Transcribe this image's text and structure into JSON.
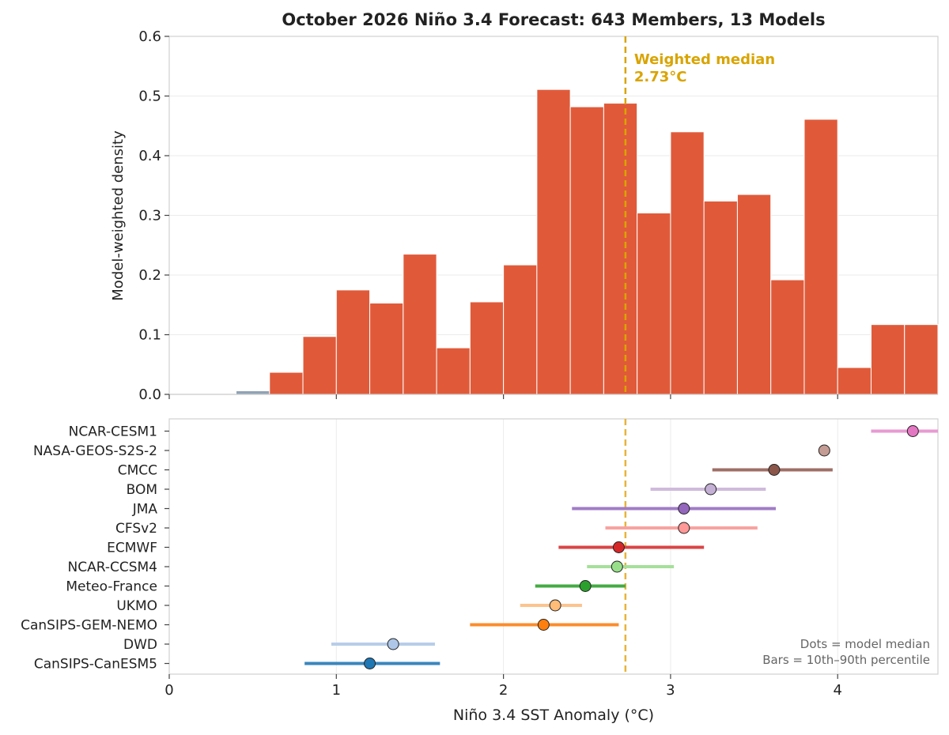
{
  "title": "October 2026 Niño 3.4 Forecast: 643 Members, 13 Models",
  "colors": {
    "bar_main": "#e05a3a",
    "bar_low": "#8fa3b5",
    "median_line": "#d9a400",
    "median_line_lower": "#e8b43a",
    "grid": "#ebebeb",
    "axes_frame": "#d0d0d0",
    "text": "#222222",
    "note": "#666666"
  },
  "median": {
    "value": 2.73,
    "label_line1": "Weighted median",
    "label_line2": "2.73°C"
  },
  "chart_data": [
    {
      "type": "bar",
      "title": "October 2026 Niño 3.4 Forecast: 643 Members, 13 Models",
      "xlabel": "",
      "ylabel": "Model-weighted density",
      "xlim": [
        0,
        4.6
      ],
      "ylim": [
        0,
        0.6
      ],
      "yticks": [
        0.0,
        0.1,
        0.2,
        0.3,
        0.4,
        0.5,
        0.6
      ],
      "ytick_labels": [
        "0.0",
        "0.1",
        "0.2",
        "0.3",
        "0.4",
        "0.5",
        "0.6"
      ],
      "grid": true,
      "bin_width": 0.2,
      "bins": [
        {
          "start": 0.4,
          "value": 0.006,
          "color_key": "bar_low"
        },
        {
          "start": 0.6,
          "value": 0.037
        },
        {
          "start": 0.8,
          "value": 0.097
        },
        {
          "start": 1.0,
          "value": 0.175
        },
        {
          "start": 1.2,
          "value": 0.153
        },
        {
          "start": 1.4,
          "value": 0.235
        },
        {
          "start": 1.6,
          "value": 0.078
        },
        {
          "start": 1.8,
          "value": 0.155
        },
        {
          "start": 2.0,
          "value": 0.217
        },
        {
          "start": 2.2,
          "value": 0.511
        },
        {
          "start": 2.4,
          "value": 0.482
        },
        {
          "start": 2.6,
          "value": 0.488
        },
        {
          "start": 2.8,
          "value": 0.304
        },
        {
          "start": 3.0,
          "value": 0.44
        },
        {
          "start": 3.2,
          "value": 0.324
        },
        {
          "start": 3.4,
          "value": 0.335
        },
        {
          "start": 3.6,
          "value": 0.192
        },
        {
          "start": 3.8,
          "value": 0.461
        },
        {
          "start": 4.0,
          "value": 0.045
        },
        {
          "start": 4.2,
          "value": 0.117
        },
        {
          "start": 4.4,
          "value": 0.117
        }
      ]
    },
    {
      "type": "scatter",
      "title": "",
      "xlabel": "Niño 3.4 SST Anomaly (°C)",
      "ylabel": "",
      "xlim": [
        0,
        4.6
      ],
      "xticks": [
        0,
        1,
        2,
        3,
        4
      ],
      "xtick_labels": [
        "0",
        "1",
        "2",
        "3",
        "4"
      ],
      "grid": true,
      "note_line1": "Dots = model median",
      "note_line2": "Bars = 10th–90th percentile",
      "models": [
        {
          "name": "NCAR-CESM1",
          "median": 4.45,
          "p10": 4.2,
          "p90": 4.6,
          "color": "#e377c2",
          "bar_color": "#e89ad2"
        },
        {
          "name": "NASA-GEOS-S2S-2",
          "median": 3.92,
          "p10": null,
          "p90": null,
          "color": "#c49c94",
          "bar_color": "#c49c94"
        },
        {
          "name": "CMCC",
          "median": 3.62,
          "p10": 3.25,
          "p90": 3.97,
          "color": "#8c564b",
          "bar_color": "#9e6e64"
        },
        {
          "name": "BOM",
          "median": 3.24,
          "p10": 2.88,
          "p90": 3.57,
          "color": "#c5b0d5",
          "bar_color": "#cfbadc"
        },
        {
          "name": "JMA",
          "median": 3.08,
          "p10": 2.41,
          "p90": 3.63,
          "color": "#9467bd",
          "bar_color": "#a07cc6"
        },
        {
          "name": "CFSv2",
          "median": 3.08,
          "p10": 2.61,
          "p90": 3.52,
          "color": "#ff9896",
          "bar_color": "#f7a3a0"
        },
        {
          "name": "ECMWF",
          "median": 2.69,
          "p10": 2.33,
          "p90": 3.2,
          "color": "#d62728",
          "bar_color": "#db4446"
        },
        {
          "name": "NCAR-CCSM4",
          "median": 2.68,
          "p10": 2.5,
          "p90": 3.02,
          "color": "#98df8a",
          "bar_color": "#a5e09a"
        },
        {
          "name": "Meteo-France",
          "median": 2.49,
          "p10": 2.19,
          "p90": 2.73,
          "color": "#2ca02c",
          "bar_color": "#43ab43"
        },
        {
          "name": "UKMO",
          "median": 2.31,
          "p10": 2.1,
          "p90": 2.47,
          "color": "#ffbb78",
          "bar_color": "#fcc48e"
        },
        {
          "name": "CanSIPS-GEM-NEMO",
          "median": 2.24,
          "p10": 1.8,
          "p90": 2.69,
          "color": "#ff7f0e",
          "bar_color": "#fb8d2c"
        },
        {
          "name": "DWD",
          "median": 1.34,
          "p10": 0.97,
          "p90": 1.59,
          "color": "#aec7e8",
          "bar_color": "#b7cde9"
        },
        {
          "name": "CanSIPS-CanESM5",
          "median": 1.2,
          "p10": 0.81,
          "p90": 1.62,
          "color": "#1f77b4",
          "bar_color": "#3a86bd"
        }
      ]
    }
  ]
}
